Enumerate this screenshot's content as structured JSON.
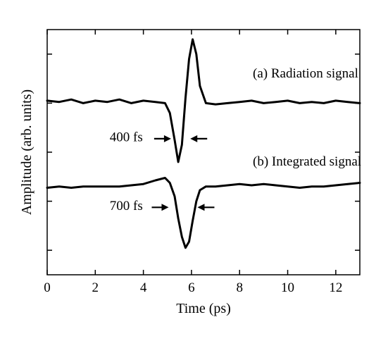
{
  "chart_data": {
    "type": "line",
    "title": "",
    "xlabel": "Time (ps)",
    "ylabel": "Amplitude (arb. units)",
    "xlim": [
      0,
      13
    ],
    "ylim": [
      0,
      10
    ],
    "xticks": [
      0,
      2,
      4,
      6,
      8,
      10,
      12
    ],
    "xtick_labels": [
      "0",
      "2",
      "4",
      "6",
      "8",
      "10",
      "12"
    ],
    "yticks": [
      1,
      3,
      5,
      7,
      9
    ],
    "ytick_labels": [
      "",
      "",
      "",
      "",
      ""
    ],
    "grid": false,
    "legend": "none",
    "x": [
      0,
      0.5,
      1,
      1.5,
      2,
      2.5,
      3,
      3.5,
      4,
      4.5,
      4.9,
      5.1,
      5.3,
      5.45,
      5.6,
      5.75,
      5.9,
      6.05,
      6.2,
      6.35,
      6.6,
      7,
      7.5,
      8,
      8.5,
      9,
      9.5,
      10,
      10.5,
      11,
      11.5,
      12,
      12.5,
      13
    ],
    "series": [
      {
        "name": "(a) Radiation signal",
        "values": [
          7.1,
          7.05,
          7.15,
          7.0,
          7.1,
          7.05,
          7.15,
          7.0,
          7.1,
          7.05,
          7.0,
          6.6,
          5.5,
          4.6,
          5.3,
          7.2,
          8.8,
          9.6,
          9.0,
          7.7,
          7.0,
          6.95,
          7.0,
          7.05,
          7.1,
          7.0,
          7.05,
          7.1,
          7.0,
          7.05,
          7.0,
          7.1,
          7.05,
          7.0
        ],
        "color": "#000000"
      },
      {
        "name": "(b) Integrated signal",
        "values": [
          3.55,
          3.6,
          3.55,
          3.6,
          3.6,
          3.6,
          3.6,
          3.65,
          3.7,
          3.85,
          3.95,
          3.75,
          3.2,
          2.3,
          1.55,
          1.1,
          1.35,
          2.2,
          3.0,
          3.45,
          3.6,
          3.6,
          3.65,
          3.7,
          3.65,
          3.7,
          3.65,
          3.6,
          3.55,
          3.6,
          3.6,
          3.65,
          3.7,
          3.75
        ],
        "color": "#000000"
      }
    ],
    "annotations": [
      {
        "text": "(a) Radiation signal",
        "x": 8.55,
        "y": 8.05
      },
      {
        "text": "(b) Integrated signal",
        "x": 8.55,
        "y": 4.45
      },
      {
        "text": "400 fs",
        "x": 2.6,
        "y": 5.45
      },
      {
        "text": "700 fs",
        "x": 2.6,
        "y": 2.65
      }
    ],
    "pulse_markers": [
      {
        "label": "400 fs",
        "left_x": 5.15,
        "right_x": 5.95,
        "y": 5.55
      },
      {
        "label": "700 fs",
        "left_x": 5.05,
        "right_x": 6.25,
        "y": 2.75
      }
    ]
  }
}
